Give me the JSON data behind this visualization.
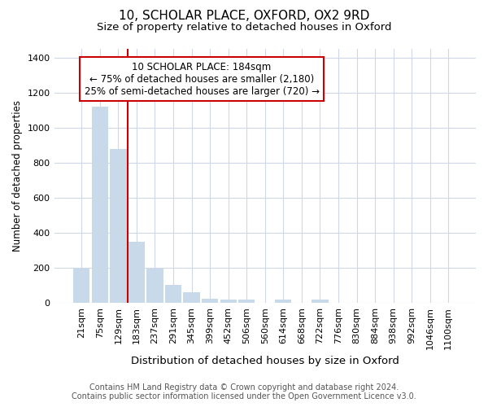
{
  "title_line1": "10, SCHOLAR PLACE, OXFORD, OX2 9RD",
  "title_line2": "Size of property relative to detached houses in Oxford",
  "xlabel": "Distribution of detached houses by size in Oxford",
  "ylabel": "Number of detached properties",
  "categories": [
    "21sqm",
    "75sqm",
    "129sqm",
    "183sqm",
    "237sqm",
    "291sqm",
    "345sqm",
    "399sqm",
    "452sqm",
    "506sqm",
    "560sqm",
    "614sqm",
    "668sqm",
    "722sqm",
    "776sqm",
    "830sqm",
    "884sqm",
    "938sqm",
    "992sqm",
    "1046sqm",
    "1100sqm"
  ],
  "values": [
    200,
    1120,
    880,
    350,
    193,
    100,
    58,
    25,
    20,
    18,
    0,
    18,
    0,
    18,
    0,
    0,
    0,
    0,
    0,
    0,
    0
  ],
  "bar_color": "#c8daea",
  "bar_edgecolor": "#c8daea",
  "bar_linewidth": 0.0,
  "vline_x": 3,
  "vline_color": "#cc0000",
  "vline_linewidth": 1.5,
  "ylim": [
    0,
    1450
  ],
  "yticks": [
    0,
    200,
    400,
    600,
    800,
    1000,
    1200,
    1400
  ],
  "annotation_text": "10 SCHOLAR PLACE: 184sqm\n← 75% of detached houses are smaller (2,180)\n25% of semi-detached houses are larger (720) →",
  "footer_line1": "Contains HM Land Registry data © Crown copyright and database right 2024.",
  "footer_line2": "Contains public sector information licensed under the Open Government Licence v3.0.",
  "bg_color": "#ffffff",
  "plot_bg_color": "#ffffff",
  "grid_color": "#d0d8e8",
  "title_fontsize": 11,
  "subtitle_fontsize": 9.5,
  "xlabel_fontsize": 9.5,
  "ylabel_fontsize": 8.5,
  "tick_fontsize": 8,
  "annotation_fontsize": 8.5,
  "footer_fontsize": 7
}
